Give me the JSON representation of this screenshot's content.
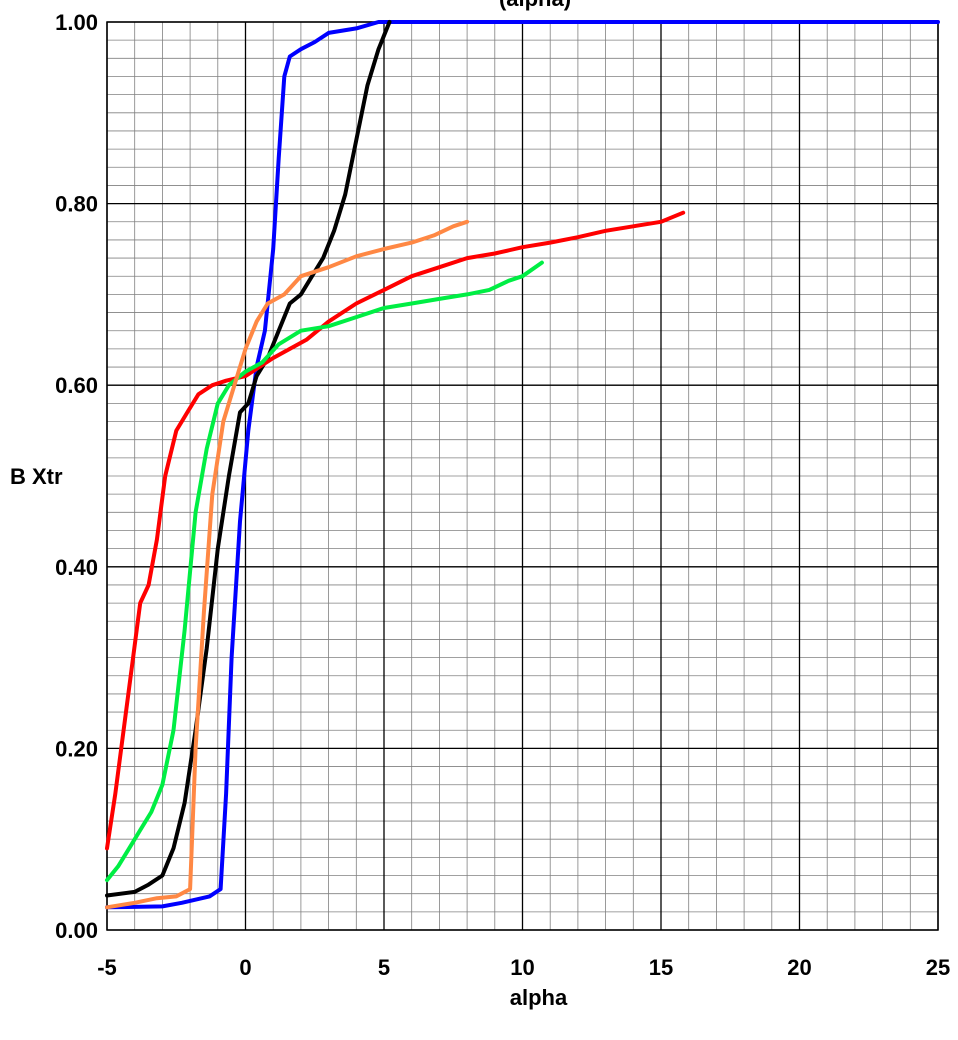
{
  "chart_data": {
    "type": "line",
    "title": "(alpha)",
    "xlabel": "alpha",
    "ylabel": "B Xtr",
    "xlim": [
      -5,
      25
    ],
    "ylim": [
      0,
      1
    ],
    "x_ticks": [
      "-5",
      "0",
      "5",
      "10",
      "15",
      "20",
      "25"
    ],
    "y_ticks": [
      "0.00",
      "0.20",
      "0.40",
      "0.60",
      "0.80",
      "1.00"
    ],
    "grid": true,
    "legend": "none",
    "series": [
      {
        "color": "#0000ff",
        "points": [
          [
            -5,
            0.025
          ],
          [
            -3,
            0.026
          ],
          [
            -2.3,
            0.03
          ],
          [
            -1.3,
            0.037
          ],
          [
            -0.9,
            0.045
          ],
          [
            -0.7,
            0.15
          ],
          [
            -0.5,
            0.3
          ],
          [
            -0.2,
            0.45
          ],
          [
            0.1,
            0.55
          ],
          [
            0.4,
            0.62
          ],
          [
            0.7,
            0.66
          ],
          [
            1.0,
            0.75
          ],
          [
            1.2,
            0.85
          ],
          [
            1.4,
            0.94
          ],
          [
            1.6,
            0.962
          ],
          [
            2.0,
            0.97
          ],
          [
            2.5,
            0.978
          ],
          [
            3.0,
            0.988
          ],
          [
            4.0,
            0.993
          ],
          [
            4.8,
            1.0
          ],
          [
            25,
            1.0
          ]
        ]
      },
      {
        "color": "#000000",
        "points": [
          [
            -5,
            0.038
          ],
          [
            -4,
            0.042
          ],
          [
            -3.5,
            0.05
          ],
          [
            -3,
            0.06
          ],
          [
            -2.6,
            0.09
          ],
          [
            -2.2,
            0.14
          ],
          [
            -1.8,
            0.22
          ],
          [
            -1.4,
            0.31
          ],
          [
            -1.0,
            0.42
          ],
          [
            -0.6,
            0.5
          ],
          [
            -0.2,
            0.57
          ],
          [
            0.1,
            0.58
          ],
          [
            0.4,
            0.61
          ],
          [
            0.8,
            0.63
          ],
          [
            1.2,
            0.66
          ],
          [
            1.6,
            0.69
          ],
          [
            2.0,
            0.7
          ],
          [
            2.4,
            0.72
          ],
          [
            2.8,
            0.74
          ],
          [
            3.2,
            0.77
          ],
          [
            3.6,
            0.81
          ],
          [
            4.0,
            0.87
          ],
          [
            4.4,
            0.93
          ],
          [
            4.8,
            0.97
          ],
          [
            5.2,
            1.0
          ]
        ]
      },
      {
        "color": "#ff0000",
        "points": [
          [
            -5,
            0.09
          ],
          [
            -4.7,
            0.15
          ],
          [
            -4.4,
            0.22
          ],
          [
            -4.1,
            0.29
          ],
          [
            -3.8,
            0.36
          ],
          [
            -3.5,
            0.38
          ],
          [
            -3.2,
            0.43
          ],
          [
            -2.9,
            0.5
          ],
          [
            -2.5,
            0.55
          ],
          [
            -2.1,
            0.57
          ],
          [
            -1.7,
            0.59
          ],
          [
            -1.2,
            0.6
          ],
          [
            -0.7,
            0.605
          ],
          [
            0,
            0.61
          ],
          [
            0.5,
            0.62
          ],
          [
            1.0,
            0.63
          ],
          [
            1.6,
            0.64
          ],
          [
            2.2,
            0.65
          ],
          [
            3.0,
            0.67
          ],
          [
            4.0,
            0.69
          ],
          [
            5.0,
            0.705
          ],
          [
            6.0,
            0.72
          ],
          [
            7.0,
            0.73
          ],
          [
            8.0,
            0.74
          ],
          [
            9.0,
            0.745
          ],
          [
            10.0,
            0.752
          ],
          [
            11.0,
            0.757
          ],
          [
            12.0,
            0.763
          ],
          [
            13.0,
            0.77
          ],
          [
            14.0,
            0.775
          ],
          [
            15.0,
            0.78
          ],
          [
            15.8,
            0.79
          ]
        ]
      },
      {
        "color": "#00ee44",
        "points": [
          [
            -5,
            0.055
          ],
          [
            -4.6,
            0.07
          ],
          [
            -4.2,
            0.09
          ],
          [
            -3.8,
            0.11
          ],
          [
            -3.4,
            0.13
          ],
          [
            -3.0,
            0.16
          ],
          [
            -2.6,
            0.22
          ],
          [
            -2.2,
            0.33
          ],
          [
            -1.8,
            0.46
          ],
          [
            -1.4,
            0.53
          ],
          [
            -1.0,
            0.58
          ],
          [
            -0.6,
            0.6
          ],
          [
            0,
            0.615
          ],
          [
            0.6,
            0.625
          ],
          [
            1.2,
            0.645
          ],
          [
            2.0,
            0.66
          ],
          [
            3.0,
            0.665
          ],
          [
            4.0,
            0.675
          ],
          [
            5.0,
            0.685
          ],
          [
            6.0,
            0.69
          ],
          [
            7.0,
            0.695
          ],
          [
            8.0,
            0.7
          ],
          [
            8.8,
            0.705
          ],
          [
            9.5,
            0.715
          ],
          [
            10.0,
            0.72
          ],
          [
            10.7,
            0.735
          ]
        ]
      },
      {
        "color": "#ff8844",
        "points": [
          [
            -5,
            0.025
          ],
          [
            -4,
            0.03
          ],
          [
            -3.2,
            0.035
          ],
          [
            -2.5,
            0.037
          ],
          [
            -2.0,
            0.045
          ],
          [
            -1.8,
            0.2
          ],
          [
            -1.5,
            0.35
          ],
          [
            -1.2,
            0.48
          ],
          [
            -0.8,
            0.56
          ],
          [
            -0.4,
            0.6
          ],
          [
            0.0,
            0.64
          ],
          [
            0.4,
            0.67
          ],
          [
            0.8,
            0.69
          ],
          [
            1.4,
            0.7
          ],
          [
            2.0,
            0.72
          ],
          [
            3.0,
            0.73
          ],
          [
            4.0,
            0.742
          ],
          [
            5.0,
            0.75
          ],
          [
            6.0,
            0.757
          ],
          [
            6.8,
            0.765
          ],
          [
            7.5,
            0.775
          ],
          [
            8.0,
            0.78
          ]
        ]
      }
    ]
  }
}
